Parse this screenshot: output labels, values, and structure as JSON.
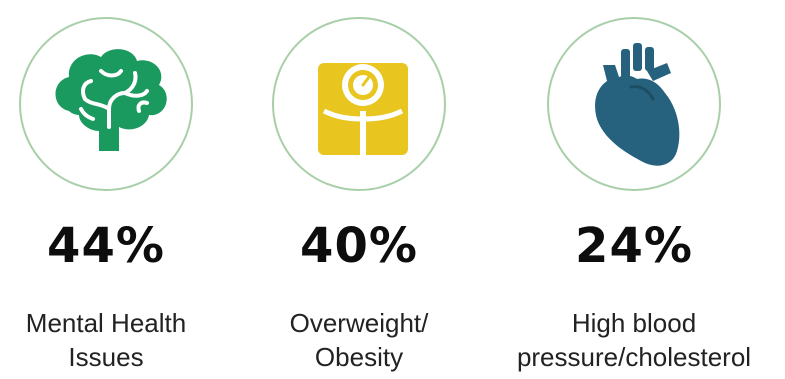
{
  "colors": {
    "circle_border": "#a8cfa8",
    "brain": "#1a9a5e",
    "scale": "#e8c51f",
    "heart": "#26627e",
    "text": "#111111"
  },
  "stats": [
    {
      "icon": "brain-icon",
      "value": "44%",
      "label_lines": [
        "Mental Health",
        "Issues"
      ]
    },
    {
      "icon": "scale-icon",
      "value": "40%",
      "label_lines": [
        "Overweight/",
        "Obesity"
      ]
    },
    {
      "icon": "heart-icon",
      "value": "24%",
      "label_lines": [
        "High blood",
        "pressure/cholesterol"
      ]
    }
  ]
}
